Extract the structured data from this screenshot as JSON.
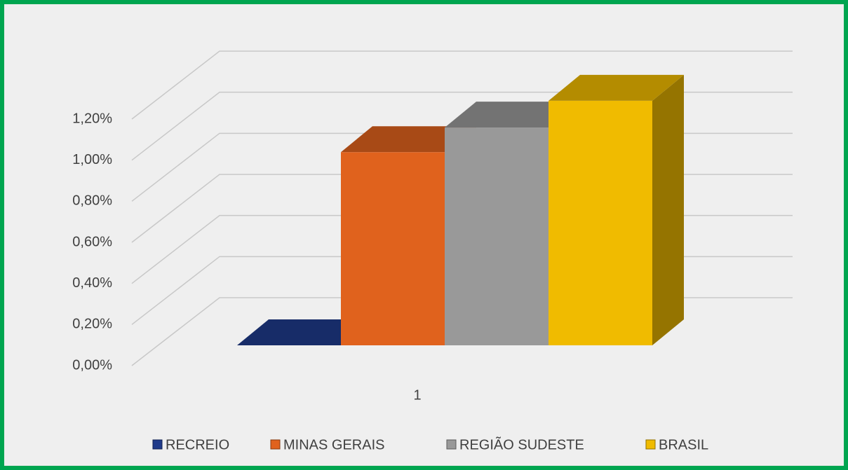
{
  "chart_data": {
    "type": "bar3d",
    "categories": [
      "1"
    ],
    "series": [
      {
        "name": "RECREIO",
        "color": "#1f3a8a",
        "values": [
          0
        ]
      },
      {
        "name": "MINAS GERAIS",
        "color": "#e0621d",
        "values": [
          0.94
        ]
      },
      {
        "name": "REGIÃO SUDESTE",
        "color": "#999999",
        "values": [
          1.06
        ]
      },
      {
        "name": "BRASIL",
        "color": "#f0bb00",
        "values": [
          1.19
        ]
      }
    ],
    "ylim": [
      0,
      1.2
    ],
    "yticks": [
      {
        "value": 0,
        "label": "0,00%"
      },
      {
        "value": 0.2,
        "label": "0,20%"
      },
      {
        "value": 0.4,
        "label": "0,40%"
      },
      {
        "value": 0.6,
        "label": "0,60%"
      },
      {
        "value": 0.8,
        "label": "0,80%"
      },
      {
        "value": 1.0,
        "label": "1,00%"
      },
      {
        "value": 1.2,
        "label": "1,20%"
      }
    ],
    "grid": true,
    "legend": "bottom"
  }
}
